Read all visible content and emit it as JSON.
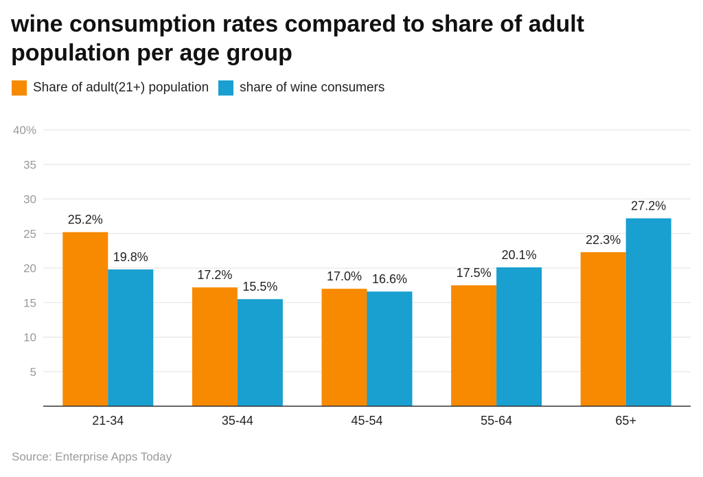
{
  "title": "wine consumption rates compared to share of adult population per age group",
  "source": "Source: Enterprise Apps Today",
  "colors": {
    "series1": "#F78A00",
    "series2": "#199FD0",
    "grid": "#e2e2e2",
    "axis": "#333333",
    "tick_text": "#999999"
  },
  "chart_data": {
    "type": "bar",
    "title": "wine consumption rates compared to share of adult population per age group",
    "xlabel": "",
    "ylabel": "",
    "ylim": [
      0,
      40
    ],
    "yticks": [
      "",
      "5",
      "10",
      "15",
      "20",
      "25",
      "30",
      "35",
      "40%"
    ],
    "categories": [
      "21-34",
      "35-44",
      "45-54",
      "55-64",
      "65+"
    ],
    "series": [
      {
        "name": "Share of adult(21+) population",
        "values": [
          25.2,
          17.2,
          17.0,
          17.5,
          22.3
        ],
        "labels": [
          "25.2%",
          "17.2%",
          "17.0%",
          "17.5%",
          "22.3%"
        ]
      },
      {
        "name": "share of wine consumers",
        "values": [
          19.8,
          15.5,
          16.6,
          20.1,
          27.2
        ],
        "labels": [
          "19.8%",
          "15.5%",
          "16.6%",
          "20.1%",
          "27.2%"
        ]
      }
    ],
    "legend_position": "top-left",
    "grid": true
  }
}
